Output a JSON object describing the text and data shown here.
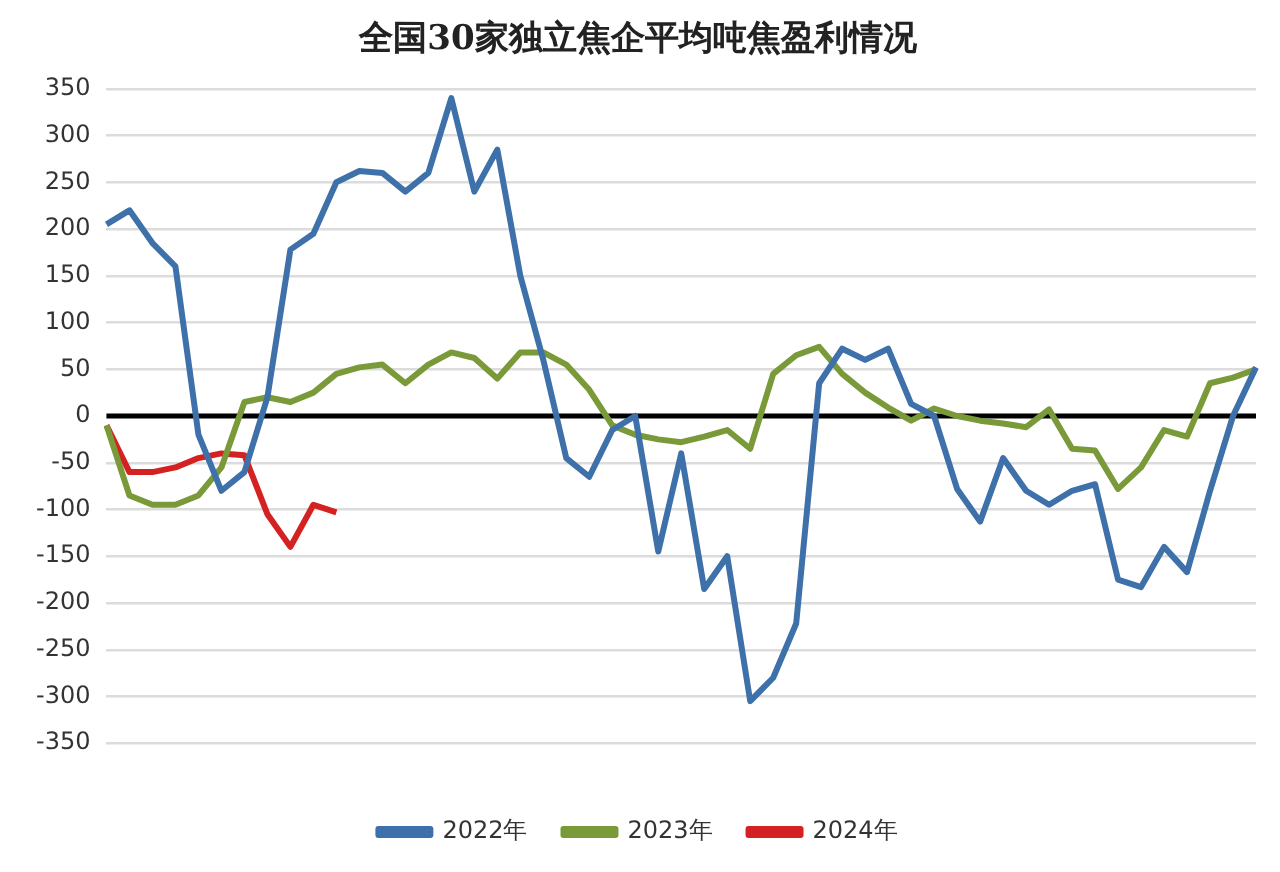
{
  "chart_data": {
    "type": "line",
    "title": "全国30家独立焦企平均吨焦盈利情况",
    "categories": [
      null,
      null,
      null,
      null,
      null,
      null,
      null,
      null,
      null,
      null,
      null,
      null,
      null,
      null,
      null,
      null,
      null,
      null,
      null,
      null,
      null,
      null,
      null,
      null,
      null,
      null,
      null,
      null,
      null,
      null,
      null,
      null,
      null,
      null,
      null,
      null,
      null,
      null,
      null,
      null,
      null,
      null,
      null,
      null,
      null,
      null,
      null,
      null,
      null,
      null,
      null
    ],
    "series": [
      {
        "name": "2022年",
        "color": "#3e70a9",
        "values": [
          205,
          220,
          185,
          160,
          -20,
          -80,
          -60,
          20,
          178,
          195,
          250,
          262,
          260,
          240,
          260,
          340,
          240,
          285,
          150,
          60,
          -45,
          -65,
          -15,
          0,
          -145,
          -40,
          -185,
          -150,
          -305,
          -280,
          -222,
          35,
          72,
          60,
          72,
          13,
          0,
          -78,
          -113,
          -45,
          -80,
          -95,
          -80,
          -73,
          -175,
          -183,
          -140,
          -167,
          -80,
          0,
          52
        ]
      },
      {
        "name": "2023年",
        "color": "#7a9a3a",
        "values": [
          -10,
          -85,
          -95,
          -95,
          -85,
          -55,
          15,
          20,
          15,
          25,
          45,
          52,
          55,
          35,
          55,
          68,
          62,
          40,
          68,
          68,
          55,
          28,
          -10,
          -20,
          -25,
          -28,
          -22,
          -15,
          -35,
          45,
          65,
          74,
          45,
          25,
          9,
          -5,
          8,
          0,
          -5,
          -8,
          -12,
          7,
          -35,
          -37,
          -78,
          -55,
          -15,
          -22,
          35,
          41,
          50
        ]
      },
      {
        "name": "2024年",
        "color": "#d42222",
        "values": [
          -10,
          -60,
          -60,
          -55,
          -45,
          -40,
          -42,
          -105,
          -140,
          -95,
          -103,
          null,
          null,
          null,
          null,
          null,
          null,
          null,
          null,
          null,
          null,
          null,
          null,
          null,
          null,
          null,
          null,
          null,
          null,
          null,
          null,
          null,
          null,
          null,
          null,
          null,
          null,
          null,
          null,
          null,
          null,
          null,
          null,
          null,
          null,
          null,
          null,
          null,
          null,
          null,
          null
        ]
      }
    ],
    "ylim": [
      -350,
      350
    ],
    "yticks": [
      -350,
      -300,
      -250,
      -200,
      -150,
      -100,
      -50,
      0,
      50,
      100,
      150,
      200,
      250,
      300,
      350
    ],
    "ref_lines": [
      {
        "axis": "y",
        "value": 0,
        "color": "#000000"
      }
    ],
    "grid": "y",
    "legend": "bottom",
    "marker": "none",
    "line_style": "solid"
  }
}
